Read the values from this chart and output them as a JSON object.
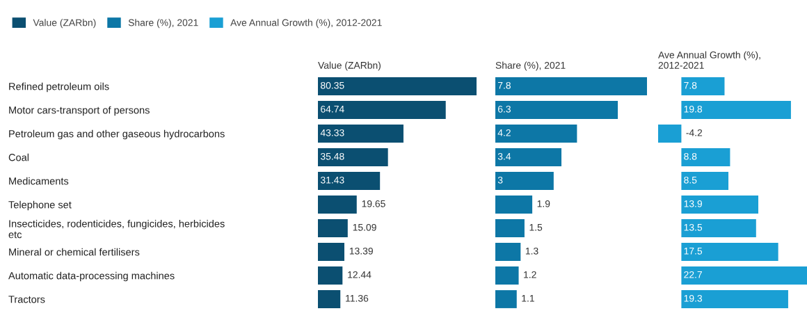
{
  "chart_data": [
    {
      "type": "bar",
      "orientation": "horizontal",
      "title": "Value (ZARbn)",
      "legend": "top left",
      "data_labels": true,
      "tick_labels": "y",
      "xlim": [
        0,
        80.35
      ],
      "categories": [
        "Refined petroleum oils",
        "Motor cars-transport of persons",
        "Petroleum gas and other gaseous hydrocarbons",
        "Coal",
        "Medicaments",
        "Telephone set",
        "Insecticides, rodenticides, fungicides, herbicides\netc",
        "Mineral or chemical fertilisers",
        "Automatic data-processing machines",
        "Tractors"
      ],
      "series": [
        {
          "name": "Value (ZARbn)",
          "color": "#0b4f71",
          "values": [
            80.35,
            64.74,
            43.33,
            35.48,
            31.43,
            19.65,
            15.09,
            13.39,
            12.44,
            11.36
          ]
        }
      ]
    },
    {
      "type": "bar",
      "orientation": "horizontal",
      "title": "Share (%), 2021",
      "data_labels": true,
      "tick_labels": false,
      "xlim": [
        0,
        7.8
      ],
      "series": [
        {
          "name": "Share (%), 2021",
          "color": "#0d77a6",
          "values": [
            7.8,
            6.3,
            4.2,
            3.4,
            3,
            1.9,
            1.5,
            1.3,
            1.2,
            1.1
          ]
        }
      ]
    },
    {
      "type": "bar",
      "orientation": "horizontal",
      "title": "Ave Annual Growth (%),\n2012-2021",
      "data_labels": true,
      "tick_labels": false,
      "xlim": [
        -4.2,
        22.7
      ],
      "series": [
        {
          "name": "Ave Annual Growth (%), 2012-2021",
          "color": "#1a9fd4",
          "values": [
            7.8,
            19.8,
            -4.2,
            8.8,
            8.5,
            13.9,
            13.5,
            17.5,
            22.7,
            19.3
          ]
        }
      ]
    }
  ]
}
